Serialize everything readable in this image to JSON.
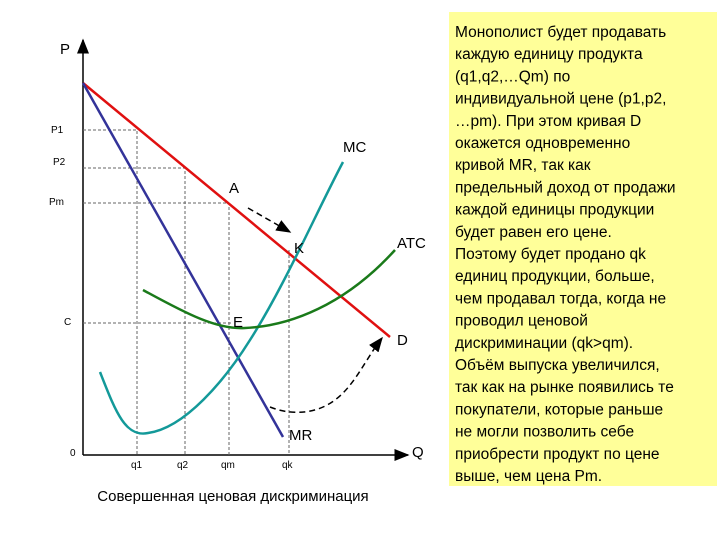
{
  "axes": {
    "y_label": "P",
    "x_label": "Q",
    "origin": "0"
  },
  "price_labels": [
    "P1",
    "P2",
    "Pm",
    "C"
  ],
  "quantity_labels": [
    "q1",
    "q2",
    "qm",
    "qk"
  ],
  "curve_labels": {
    "mc": "MC",
    "atc": "ATC",
    "demand": "D",
    "mr": "MR"
  },
  "point_labels": {
    "a": "A",
    "k": "K",
    "e": "E"
  },
  "caption": "Совершенная ценовая дискриминация",
  "text_box": {
    "lines": [
      "Монополист будет продавать",
      "каждую единицу продукта",
      "(q1,q2,…Qm) по",
      "индивидуальной цене (p1,p2,",
      "…pm). При этом кривая D",
      "окажется одновременно",
      "кривой MR, так как",
      "предельный доход от продажи",
      "каждой единицы продукции",
      "будет равен его цене.",
      "Поэтому будет продано qk",
      "единиц продукции, больше,",
      "чем продавал тогда, когда не",
      "проводил ценовой",
      "дискриминации (qk>qm).",
      "Объём выпуска увеличился,",
      "так как на рынке появились те",
      "покупатели, которые раньше",
      "не могли позволить себе",
      "приобрести продукт по цене",
      "выше, чем цена Pm."
    ]
  }
}
